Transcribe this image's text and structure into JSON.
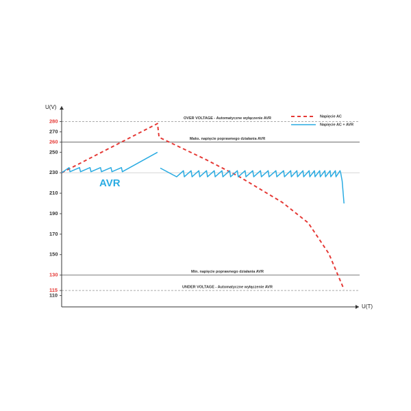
{
  "chart_data": {
    "type": "line",
    "y_label": "U(V)",
    "x_label": "U(T)",
    "ylim": [
      99,
      295
    ],
    "xlim": [
      0,
      100
    ],
    "yticks": [
      280,
      270,
      260,
      250,
      230,
      210,
      190,
      170,
      150,
      130,
      115,
      110
    ],
    "grid_values": [
      230
    ],
    "highlight_color": "#e53935",
    "reference_lines": [
      {
        "value": 280,
        "label": "OVER VOLTAGE - Automatyczne wyłączenie AVR",
        "style": "dashed",
        "color": "#9e9e9e"
      },
      {
        "value": 260,
        "label": "Maks. napięcie poprawnego działania AVR",
        "style": "solid",
        "color": "#555555"
      },
      {
        "value": 130,
        "label": "Min. napięcie poprawnego działania AVR",
        "style": "solid",
        "color": "#555555"
      },
      {
        "value": 115,
        "label": "UNDER VOLTAGE - Automatyczne wyłączenie AVR",
        "style": "dashed",
        "color": "#9e9e9e"
      }
    ],
    "annotation": {
      "text": "AVR",
      "color": "#29abe2"
    },
    "legend": "top-right",
    "series": [
      {
        "name": "Napięcie AC",
        "color": "#e53935",
        "style": "dashed",
        "x": [
          0,
          31.1,
          31.6,
          46.7,
          57.8,
          71.6,
          80,
          86.7,
          91.6
        ],
        "values": [
          230,
          278,
          264.6,
          243,
          225.8,
          201,
          181,
          151,
          116
        ]
      },
      {
        "name": "Napięcie AC  + AVR",
        "color": "#29abe2",
        "style": "solid",
        "x": [
          0,
          2.4,
          2.7,
          5.8,
          6.1,
          9.2,
          9.5,
          12.6,
          12.9,
          16,
          16.3,
          19.4,
          19.7,
          31.1,
          31.6,
          32,
          37.3,
          39.5,
          39.8,
          42,
          42.3,
          44.5,
          44.8,
          47,
          47.3,
          49.5,
          49.8,
          52,
          52.3,
          54.5,
          54.8,
          57,
          57.3,
          59.5,
          59.8,
          62,
          62.3,
          64.5,
          64.8,
          67,
          67.3,
          69.5,
          69.8,
          72,
          72.3,
          74.3,
          74.5,
          76.3,
          76.5,
          78.3,
          78.5,
          80.3,
          80.5,
          82,
          82.2,
          83.7,
          83.9,
          85.4,
          85.6,
          87.1,
          87.3,
          88.8,
          89,
          90.3,
          90.5,
          91,
          91.6
        ],
        "values": [
          230,
          235,
          231,
          235,
          231,
          235,
          231,
          235,
          231,
          235,
          231,
          235,
          231,
          250,
          null,
          234.5,
          226,
          232,
          226,
          232,
          226,
          232,
          226,
          232,
          226,
          232,
          226,
          232,
          226,
          232,
          226,
          232,
          226,
          232,
          226,
          232,
          226,
          232,
          226,
          232,
          226,
          232,
          226,
          232,
          226,
          232,
          226,
          232,
          226,
          232,
          226,
          232,
          226,
          232,
          226,
          232,
          226,
          232,
          226,
          232,
          226,
          232,
          226,
          232,
          230,
          222,
          200
        ]
      }
    ]
  }
}
